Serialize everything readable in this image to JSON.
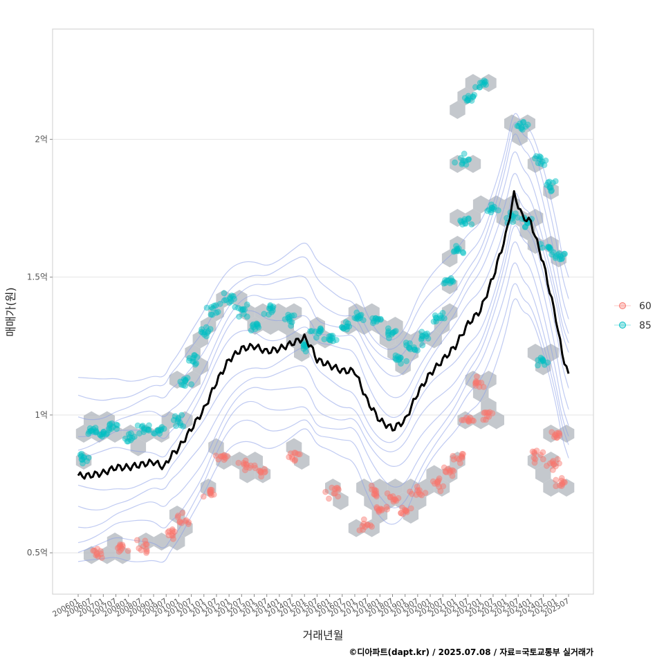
{
  "chart_data": {
    "type": "scatter",
    "xlabel": "거래년월",
    "ylabel": "매매가(원)",
    "caption": "©디아파트(dapt.kr) / 2025.07.08 / 자료=국토교통부 실거래가",
    "x_range": [
      "2006-01",
      "2025-07"
    ],
    "ylim": [
      0.35,
      2.4
    ],
    "y_unit": "억",
    "grid": true,
    "legend_position": "right",
    "y_ticks": [
      {
        "value": 0.5,
        "label": "0.5억"
      },
      {
        "value": 1.0,
        "label": "1억"
      },
      {
        "value": 1.5,
        "label": "1.5억"
      },
      {
        "value": 2.0,
        "label": "2억"
      }
    ],
    "x_ticks": [
      "200601",
      "200607",
      "200701",
      "200707",
      "200801",
      "200807",
      "200901",
      "200907",
      "201001",
      "201007",
      "201101",
      "201107",
      "201201",
      "201207",
      "201301",
      "201307",
      "201401",
      "201407",
      "201501",
      "201507",
      "201601",
      "201607",
      "201701",
      "201707",
      "201801",
      "201807",
      "201901",
      "201907",
      "202001",
      "202007",
      "202101",
      "202107",
      "202201",
      "202207",
      "202301",
      "202307",
      "202401",
      "202407",
      "202501",
      "202507"
    ],
    "series": [
      {
        "name": "60",
        "color": "#F8766D",
        "clusters": [
          {
            "x": "2006-10",
            "y": 0.5
          },
          {
            "x": "2007-09",
            "y": 0.52
          },
          {
            "x": "2008-09",
            "y": 0.52
          },
          {
            "x": "2009-09",
            "y": 0.57
          },
          {
            "x": "2010-03",
            "y": 0.62
          },
          {
            "x": "2011-03",
            "y": 0.72
          },
          {
            "x": "2011-09",
            "y": 0.85
          },
          {
            "x": "2012-09",
            "y": 0.82
          },
          {
            "x": "2013-04",
            "y": 0.8
          },
          {
            "x": "2014-09",
            "y": 0.85
          },
          {
            "x": "2016-03",
            "y": 0.72
          },
          {
            "x": "2017-06",
            "y": 0.6
          },
          {
            "x": "2017-10",
            "y": 0.72
          },
          {
            "x": "2018-02",
            "y": 0.66
          },
          {
            "x": "2018-07",
            "y": 0.7
          },
          {
            "x": "2019-01",
            "y": 0.65
          },
          {
            "x": "2019-07",
            "y": 0.72
          },
          {
            "x": "2020-05",
            "y": 0.75
          },
          {
            "x": "2020-10",
            "y": 0.8
          },
          {
            "x": "2021-02",
            "y": 0.85
          },
          {
            "x": "2021-06",
            "y": 0.98
          },
          {
            "x": "2021-12",
            "y": 1.12
          },
          {
            "x": "2022-04",
            "y": 1.0
          },
          {
            "x": "2024-04",
            "y": 0.85
          },
          {
            "x": "2024-11",
            "y": 0.82
          },
          {
            "x": "2025-04",
            "y": 0.75
          },
          {
            "x": "2025-02",
            "y": 0.93
          }
        ]
      },
      {
        "name": "85",
        "color": "#00BFC4",
        "clusters": [
          {
            "x": "2006-03",
            "y": 0.85
          },
          {
            "x": "2006-07",
            "y": 0.95
          },
          {
            "x": "2007-01",
            "y": 0.93
          },
          {
            "x": "2007-06",
            "y": 0.96
          },
          {
            "x": "2008-02",
            "y": 0.92
          },
          {
            "x": "2008-09",
            "y": 0.95
          },
          {
            "x": "2009-04",
            "y": 0.94
          },
          {
            "x": "2010-01",
            "y": 0.98
          },
          {
            "x": "2010-04",
            "y": 1.12
          },
          {
            "x": "2010-09",
            "y": 1.2
          },
          {
            "x": "2011-02",
            "y": 1.3
          },
          {
            "x": "2011-06",
            "y": 1.38
          },
          {
            "x": "2012-01",
            "y": 1.42
          },
          {
            "x": "2012-07",
            "y": 1.38
          },
          {
            "x": "2013-01",
            "y": 1.32
          },
          {
            "x": "2013-08",
            "y": 1.38
          },
          {
            "x": "2014-06",
            "y": 1.35
          },
          {
            "x": "2015-01",
            "y": 1.25
          },
          {
            "x": "2015-07",
            "y": 1.3
          },
          {
            "x": "2016-01",
            "y": 1.28
          },
          {
            "x": "2016-09",
            "y": 1.32
          },
          {
            "x": "2017-04",
            "y": 1.35
          },
          {
            "x": "2017-11",
            "y": 1.35
          },
          {
            "x": "2018-06",
            "y": 1.3
          },
          {
            "x": "2018-10",
            "y": 1.2
          },
          {
            "x": "2019-04",
            "y": 1.25
          },
          {
            "x": "2019-10",
            "y": 1.28
          },
          {
            "x": "2020-05",
            "y": 1.35
          },
          {
            "x": "2020-10",
            "y": 1.48
          },
          {
            "x": "2021-02",
            "y": 1.6
          },
          {
            "x": "2021-06",
            "y": 1.7
          },
          {
            "x": "2021-04",
            "y": 1.92
          },
          {
            "x": "2021-08",
            "y": 2.15
          },
          {
            "x": "2022-02",
            "y": 2.2
          },
          {
            "x": "2022-06",
            "y": 1.75
          },
          {
            "x": "2023-03",
            "y": 1.72
          },
          {
            "x": "2023-10",
            "y": 1.7
          },
          {
            "x": "2023-09",
            "y": 2.05
          },
          {
            "x": "2024-05",
            "y": 1.92
          },
          {
            "x": "2024-09",
            "y": 1.6
          },
          {
            "x": "2024-11",
            "y": 1.83
          },
          {
            "x": "2025-03",
            "y": 1.58
          },
          {
            "x": "2024-06",
            "y": 1.19
          }
        ]
      }
    ],
    "trend_line": {
      "color": "#000000",
      "points": [
        {
          "x": "2006-01",
          "y": 0.78
        },
        {
          "x": "2006-06",
          "y": 0.78
        },
        {
          "x": "2007-01",
          "y": 0.79
        },
        {
          "x": "2007-07",
          "y": 0.81
        },
        {
          "x": "2008-01",
          "y": 0.81
        },
        {
          "x": "2008-07",
          "y": 0.82
        },
        {
          "x": "2009-01",
          "y": 0.83
        },
        {
          "x": "2009-06",
          "y": 0.81
        },
        {
          "x": "2009-09",
          "y": 0.85
        },
        {
          "x": "2010-01",
          "y": 0.88
        },
        {
          "x": "2010-07",
          "y": 0.95
        },
        {
          "x": "2011-01",
          "y": 1.02
        },
        {
          "x": "2011-07",
          "y": 1.12
        },
        {
          "x": "2012-01",
          "y": 1.2
        },
        {
          "x": "2012-07",
          "y": 1.24
        },
        {
          "x": "2013-01",
          "y": 1.25
        },
        {
          "x": "2013-07",
          "y": 1.23
        },
        {
          "x": "2014-01",
          "y": 1.24
        },
        {
          "x": "2014-07",
          "y": 1.26
        },
        {
          "x": "2015-01",
          "y": 1.28
        },
        {
          "x": "2015-04",
          "y": 1.25
        },
        {
          "x": "2015-07",
          "y": 1.2
        },
        {
          "x": "2016-01",
          "y": 1.18
        },
        {
          "x": "2016-07",
          "y": 1.16
        },
        {
          "x": "2017-01",
          "y": 1.16
        },
        {
          "x": "2017-07",
          "y": 1.05
        },
        {
          "x": "2018-01",
          "y": 0.98
        },
        {
          "x": "2018-07",
          "y": 0.95
        },
        {
          "x": "2019-01",
          "y": 0.98
        },
        {
          "x": "2019-07",
          "y": 1.08
        },
        {
          "x": "2020-01",
          "y": 1.15
        },
        {
          "x": "2020-07",
          "y": 1.2
        },
        {
          "x": "2021-01",
          "y": 1.25
        },
        {
          "x": "2021-07",
          "y": 1.33
        },
        {
          "x": "2022-01",
          "y": 1.38
        },
        {
          "x": "2022-07",
          "y": 1.5
        },
        {
          "x": "2023-01",
          "y": 1.65
        },
        {
          "x": "2023-05",
          "y": 1.8
        },
        {
          "x": "2023-09",
          "y": 1.72
        },
        {
          "x": "2024-01",
          "y": 1.7
        },
        {
          "x": "2024-07",
          "y": 1.55
        },
        {
          "x": "2025-01",
          "y": 1.35
        },
        {
          "x": "2025-04",
          "y": 1.22
        },
        {
          "x": "2025-07",
          "y": 1.15
        }
      ]
    },
    "colors": {
      "hex_fill": "#b0b6bc",
      "contour": "#8a9ee8",
      "grid": "#e4e4e4",
      "border": "#cccccc"
    }
  }
}
